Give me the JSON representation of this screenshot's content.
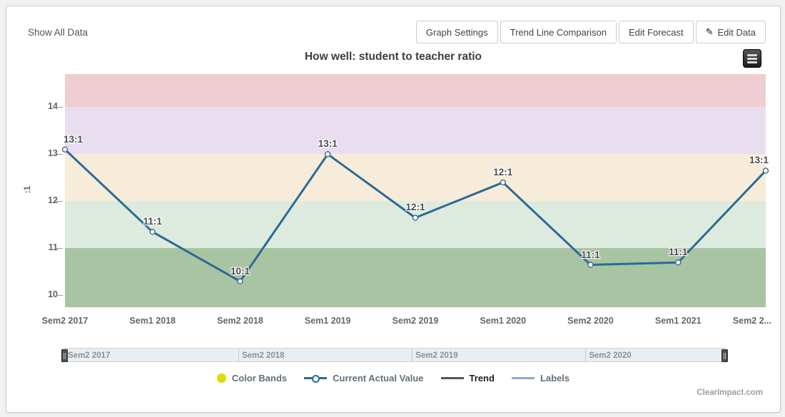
{
  "toolbar": {
    "show_all_data": "Show All Data",
    "buttons": [
      {
        "label": "Graph Settings"
      },
      {
        "label": "Trend Line Comparison"
      },
      {
        "label": "Edit Forecast"
      },
      {
        "label": "Edit Data",
        "icon": "pencil"
      }
    ],
    "pencil_glyph": "✎"
  },
  "page": {
    "watermark": "ClearImpact.com"
  },
  "chart_data": {
    "type": "line",
    "title": "How well: student to teacher ratio",
    "ylabel": ":1",
    "ylim": [
      9.75,
      14.7
    ],
    "yticks": [
      10,
      11,
      12,
      13,
      14
    ],
    "x_axis_labels": [
      "Sem2 2017",
      "Sem1 2018",
      "Sem2 2018",
      "Sem1 2019",
      "Sem2 2019",
      "Sem1 2020",
      "Sem2 2020",
      "Sem1 2021",
      "Sem2 2..."
    ],
    "bands": [
      {
        "name": "red-band",
        "from": 14.0,
        "to": 14.7,
        "color": "#efced3"
      },
      {
        "name": "purple-band",
        "from": 13.0,
        "to": 14.0,
        "color": "#e8def0"
      },
      {
        "name": "amber-band",
        "from": 12.0,
        "to": 13.0,
        "color": "#f7ecd9"
      },
      {
        "name": "lightgreen-band",
        "from": 11.0,
        "to": 12.0,
        "color": "#ddebde"
      },
      {
        "name": "green-band",
        "from": 9.75,
        "to": 11.0,
        "color": "#a9c4a2"
      }
    ],
    "series": [
      {
        "name": "Current Actual Value",
        "color": "#2b6a97",
        "values": [
          13.1,
          11.35,
          10.3,
          13.0,
          11.65,
          12.4,
          10.65,
          10.7,
          12.65
        ],
        "point_labels": [
          "13:1",
          "11:1",
          "10:1",
          "13:1",
          "12:1",
          "12:1",
          "11:1",
          "11:1",
          "13:1"
        ]
      }
    ],
    "legend": [
      {
        "label": "Color Bands",
        "marker": "circle",
        "color": "#dedc00"
      },
      {
        "label": "Current Actual Value",
        "marker": "line-circle",
        "color": "#2b6a97"
      },
      {
        "label": "Trend",
        "marker": "line",
        "color": "#555555",
        "label_color": "#1e1e1e"
      },
      {
        "label": "Labels",
        "marker": "line",
        "color": "#8fabc9"
      }
    ],
    "legend_position": "bottom",
    "grid": false,
    "navigator_labels": [
      "Sem2 2017",
      "Sem2 2018",
      "Sem2 2019",
      "Sem2 2020"
    ]
  }
}
